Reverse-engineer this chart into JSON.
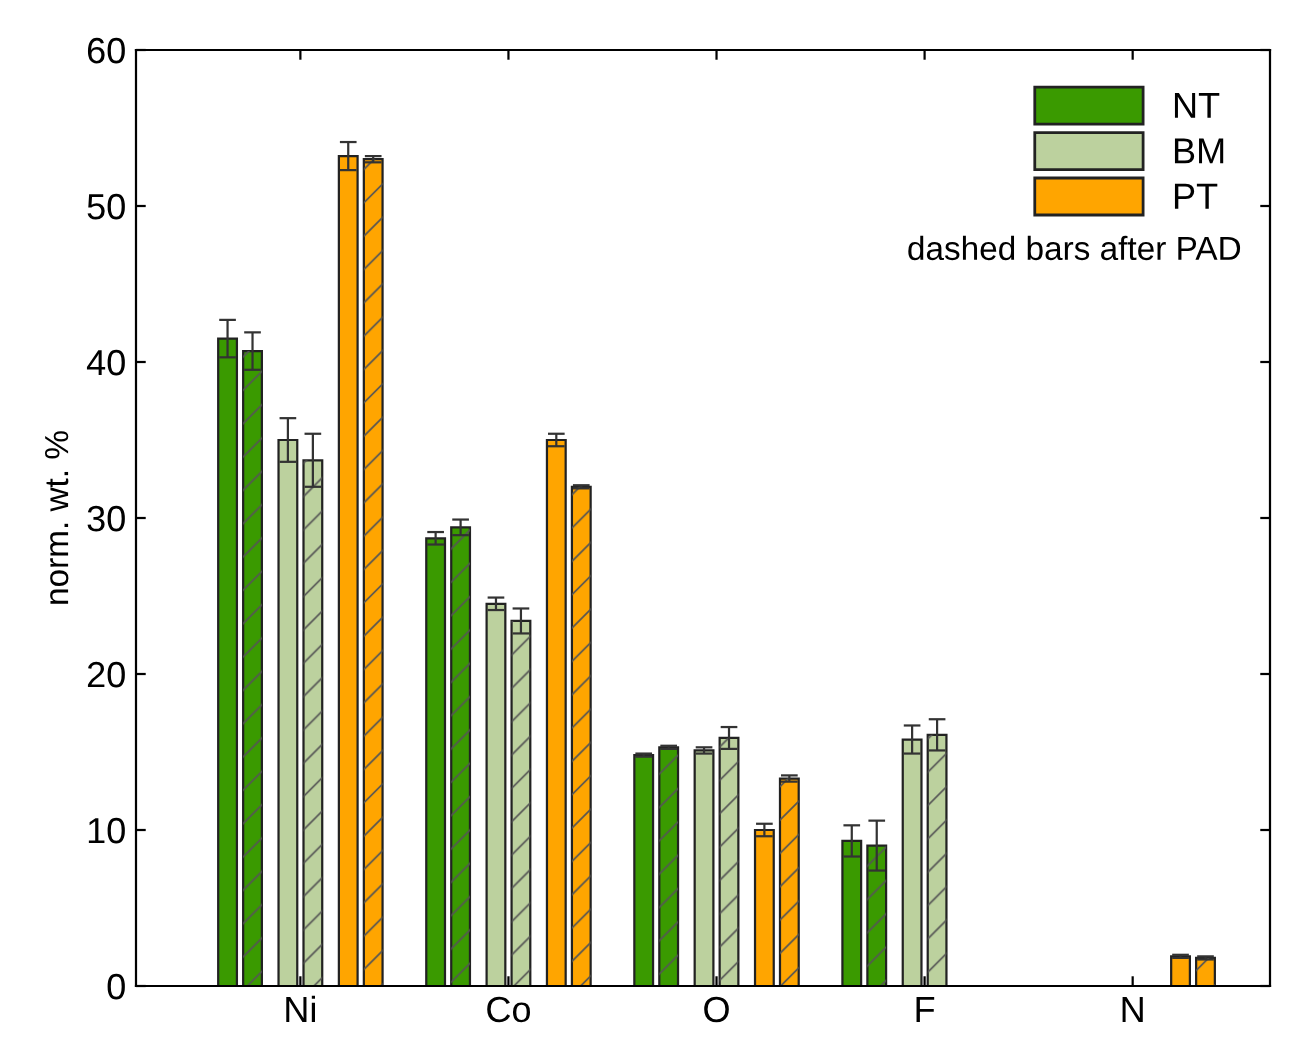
{
  "chart_data": {
    "type": "bar",
    "ylabel": "norm. wt. %",
    "categories": [
      "Ni",
      "Co",
      "O",
      "F",
      "N"
    ],
    "series": [
      {
        "name": "NT",
        "color": "#3a9a00",
        "values": [
          41.5,
          28.7,
          14.8,
          9.3,
          null
        ],
        "errors": [
          1.2,
          0.4,
          0.1,
          1.0,
          null
        ]
      },
      {
        "color": "#3a9a00",
        "values": [
          40.7,
          29.4,
          15.3,
          9.0,
          null
        ],
        "errors": [
          1.2,
          0.5,
          0.1,
          1.6,
          null
        ]
      },
      {
        "name": "BM",
        "color": "#bcd19e",
        "values": [
          35.0,
          24.5,
          15.1,
          15.8,
          null
        ],
        "errors": [
          1.4,
          0.4,
          0.2,
          0.9,
          null
        ]
      },
      {
        "color": "#bcd19e",
        "values": [
          33.7,
          23.4,
          15.9,
          16.1,
          null
        ],
        "errors": [
          1.7,
          0.8,
          0.7,
          1.0,
          null
        ]
      },
      {
        "name": "PT",
        "color": "#ffa500",
        "values": [
          53.2,
          35.0,
          10.0,
          null,
          1.9
        ],
        "errors": [
          0.9,
          0.4,
          0.4,
          null,
          0.1
        ]
      },
      {
        "color": "#ffa500",
        "values": [
          53.0,
          32.0,
          13.3,
          null,
          1.8
        ],
        "errors": [
          0.2,
          0.1,
          0.2,
          null,
          0.1
        ]
      }
    ],
    "ylim": [
      0,
      60
    ],
    "yticks": [
      0,
      10,
      20,
      30,
      40,
      50,
      60
    ],
    "grid": false,
    "legend": "top right",
    "annotations": [
      "dashed bars after PAD"
    ]
  }
}
